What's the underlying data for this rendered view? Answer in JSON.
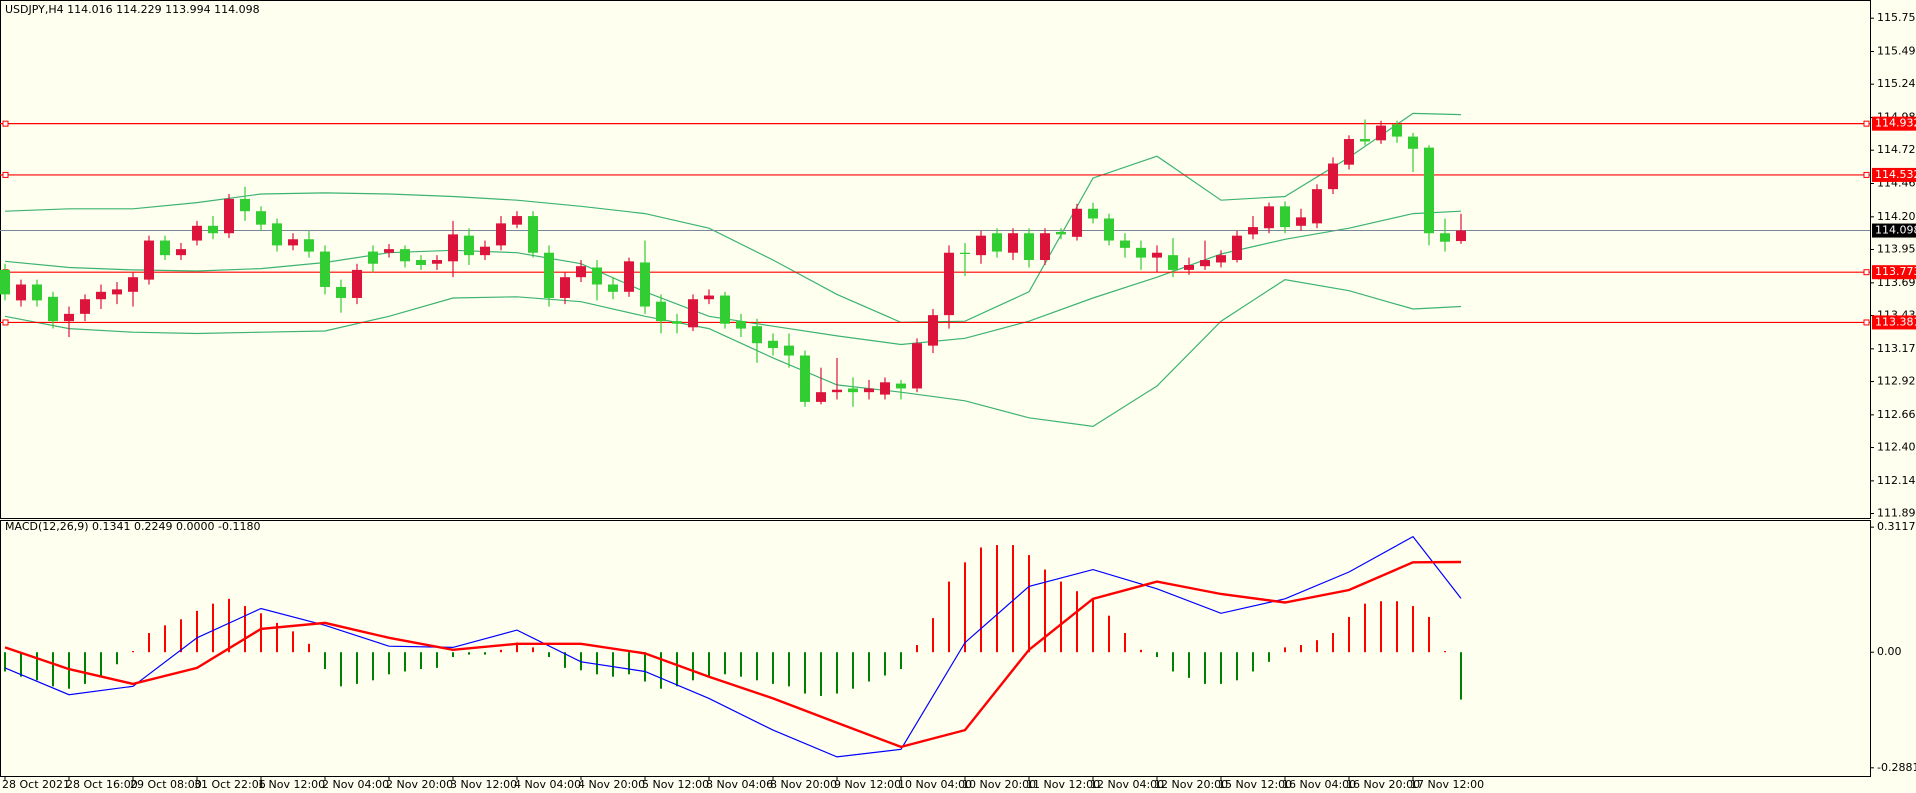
{
  "chart_data": [
    {
      "type": "candlestick",
      "title": "USDJPY,H4  114.016 114.229 113.994 114.098",
      "categories": [
        "28 Oct 2021",
        null,
        null,
        null,
        "28 Oct 16:00",
        null,
        null,
        null,
        "29 Oct 08:00",
        null,
        null,
        null,
        "31 Oct 22:06",
        null,
        null,
        null,
        "1 Nov 12:00",
        null,
        null,
        null,
        "2 Nov 04:00",
        null,
        null,
        null,
        "2 Nov 20:00",
        null,
        null,
        null,
        "3 Nov 12:00",
        null,
        null,
        null,
        "4 Nov 04:00",
        null,
        null,
        null,
        "4 Nov 20:00",
        null,
        null,
        null,
        "5 Nov 12:00",
        null,
        null,
        null,
        "8 Nov 04:06",
        null,
        null,
        null,
        "8 Nov 20:00",
        null,
        null,
        null,
        "9 Nov 12:00",
        null,
        null,
        null,
        "10 Nov 04:00",
        null,
        null,
        null,
        "10 Nov 20:00",
        null,
        null,
        null,
        "11 Nov 12:00",
        null,
        null,
        null,
        "12 Nov 04:00",
        null,
        null,
        null,
        "12 Nov 20:00",
        null,
        null,
        null,
        "15 Nov 12:00",
        null,
        null,
        null,
        "16 Nov 04:00",
        null,
        null,
        null,
        "16 Nov 20:00",
        null,
        null,
        null,
        "17 Nov 12:00",
        null,
        null,
        null
      ],
      "open": [
        113.791,
        113.553,
        113.677,
        113.581,
        113.391,
        113.448,
        113.562,
        113.6,
        113.62,
        113.715,
        114.02,
        113.906,
        114.02,
        114.135,
        114.077,
        114.345,
        114.249,
        114.154,
        113.982,
        114.03,
        113.934,
        113.658,
        113.572,
        113.934,
        113.925,
        113.953,
        113.868,
        113.839,
        113.858,
        114.058,
        113.906,
        113.982,
        114.144,
        114.211,
        113.925,
        113.572,
        113.734,
        113.81,
        113.677,
        113.62,
        113.849,
        113.543,
        113.391,
        113.343,
        113.562,
        113.591,
        113.391,
        113.352,
        113.238,
        113.2,
        113.123,
        112.761,
        112.837,
        112.866,
        112.837,
        112.818,
        112.904,
        112.866,
        113.2,
        113.438,
        113.925,
        113.906,
        114.077,
        113.925,
        114.077,
        113.868,
        114.087,
        114.049,
        114.268,
        114.192,
        114.02,
        113.963,
        113.887,
        113.906,
        113.791,
        113.82,
        113.849,
        113.868,
        114.068,
        114.116,
        114.287,
        114.135,
        114.154,
        114.421,
        114.612,
        114.812,
        114.802,
        114.926,
        114.831,
        114.745,
        114.077,
        114.016
      ],
      "high": [
        113.839,
        113.715,
        113.715,
        113.62,
        113.505,
        113.6,
        113.677,
        113.696,
        113.772,
        114.058,
        114.058,
        114.001,
        114.173,
        114.211,
        114.383,
        114.44,
        114.287,
        114.192,
        114.077,
        114.096,
        113.982,
        113.715,
        113.839,
        113.982,
        113.992,
        113.982,
        113.906,
        113.906,
        114.173,
        114.116,
        114.02,
        114.211,
        114.249,
        114.249,
        113.982,
        113.772,
        113.868,
        113.868,
        113.734,
        113.887,
        114.02,
        113.6,
        113.448,
        113.6,
        113.639,
        113.62,
        113.448,
        113.41,
        113.295,
        113.295,
        113.162,
        113.028,
        113.104,
        112.952,
        112.933,
        112.952,
        112.933,
        113.257,
        113.486,
        113.982,
        114.001,
        114.096,
        114.116,
        114.116,
        114.116,
        114.116,
        114.116,
        114.306,
        114.316,
        114.23,
        114.077,
        114.02,
        113.982,
        114.039,
        113.887,
        114.02,
        113.944,
        114.096,
        114.211,
        114.316,
        114.325,
        114.268,
        114.459,
        114.669,
        114.841,
        114.965,
        114.955,
        114.955,
        114.86,
        114.764,
        114.192,
        114.229
      ],
      "low": [
        113.553,
        113.505,
        113.505,
        113.333,
        113.267,
        113.391,
        113.486,
        113.524,
        113.505,
        113.677,
        113.868,
        113.868,
        113.982,
        114.03,
        114.039,
        114.173,
        114.096,
        113.934,
        113.944,
        113.887,
        113.6,
        113.457,
        113.524,
        113.772,
        113.887,
        113.81,
        113.791,
        113.791,
        113.734,
        113.829,
        113.868,
        113.944,
        114.116,
        113.887,
        113.505,
        113.524,
        113.696,
        113.553,
        113.562,
        113.581,
        113.448,
        113.295,
        113.295,
        113.314,
        113.524,
        113.333,
        113.267,
        113.066,
        113.123,
        113.028,
        112.723,
        112.742,
        112.78,
        112.723,
        112.78,
        112.78,
        112.78,
        112.837,
        113.142,
        113.333,
        113.744,
        113.839,
        113.887,
        113.868,
        113.81,
        113.829,
        114.03,
        114.02,
        114.154,
        113.982,
        113.887,
        113.791,
        113.772,
        113.734,
        113.753,
        113.791,
        113.81,
        113.849,
        114.03,
        114.077,
        114.077,
        114.096,
        114.116,
        114.383,
        114.574,
        114.764,
        114.774,
        114.783,
        114.554,
        113.982,
        113.934,
        113.994
      ],
      "close": [
        113.6,
        113.677,
        113.553,
        113.391,
        113.448,
        113.562,
        113.62,
        113.639,
        113.734,
        114.02,
        113.906,
        113.953,
        114.135,
        114.077,
        114.345,
        114.249,
        114.144,
        113.982,
        114.03,
        113.934,
        113.658,
        113.572,
        113.791,
        113.839,
        113.953,
        113.858,
        113.829,
        113.868,
        114.068,
        113.906,
        113.972,
        114.154,
        114.211,
        113.925,
        113.572,
        113.734,
        113.82,
        113.677,
        113.62,
        113.858,
        113.505,
        113.391,
        113.371,
        113.562,
        113.591,
        113.371,
        113.333,
        113.219,
        113.181,
        113.123,
        112.761,
        112.837,
        112.856,
        112.837,
        112.866,
        112.914,
        112.866,
        113.219,
        113.438,
        113.925,
        113.915,
        114.058,
        113.934,
        114.077,
        113.868,
        114.077,
        114.068,
        114.268,
        114.192,
        114.02,
        113.963,
        113.887,
        113.925,
        113.791,
        113.829,
        113.868,
        113.906,
        114.058,
        114.125,
        114.287,
        114.125,
        114.201,
        114.421,
        114.621,
        114.812,
        114.793,
        114.917,
        114.831,
        114.736,
        114.077,
        114.011,
        114.098
      ],
      "up_color": "#dc143c",
      "down_color": "#32cd32",
      "band_x": [
        0,
        4,
        8,
        12,
        16,
        20,
        24,
        28,
        32,
        36,
        40,
        44,
        48,
        52,
        56,
        60,
        64,
        68,
        72,
        76,
        80,
        84,
        88,
        91
      ],
      "bands": [
        {
          "color": "#3cb371",
          "values": [
            114.249,
            114.268,
            114.268,
            114.316,
            114.383,
            114.392,
            114.383,
            114.364,
            114.335,
            114.287,
            114.23,
            114.116,
            113.868,
            113.6,
            113.381,
            113.391,
            113.62,
            114.507,
            114.678,
            114.335,
            114.364,
            114.669,
            115.012,
            115.003
          ]
        },
        {
          "color": "#3cb371",
          "values": [
            113.858,
            113.81,
            113.791,
            113.782,
            113.801,
            113.849,
            113.925,
            113.944,
            113.925,
            113.839,
            113.62,
            113.429,
            113.352,
            113.276,
            113.209,
            113.257,
            113.391,
            113.572,
            113.734,
            113.915,
            114.03,
            114.116,
            114.23,
            114.249
          ]
        },
        {
          "color": "#3cb371",
          "values": [
            113.429,
            113.333,
            113.305,
            113.295,
            113.305,
            113.314,
            113.429,
            113.572,
            113.581,
            113.543,
            113.429,
            113.333,
            113.104,
            112.894,
            112.837,
            112.77,
            112.637,
            112.57,
            112.885,
            113.391,
            113.715,
            113.629,
            113.486,
            113.505
          ]
        }
      ],
      "levels": [
        {
          "value": 114.932,
          "color": "#ff0000"
        },
        {
          "value": 114.532,
          "color": "#ff0000"
        },
        {
          "value": 113.773,
          "color": "#ff0000"
        },
        {
          "value": 113.381,
          "color": "#ff0000"
        }
      ],
      "last_price_color": "#778899",
      "ylim": [
        111.863,
        115.889
      ],
      "yticks": [
        115.755,
        115.495,
        {
          "value": 115.24,
          "label": "115.240"
        },
        {
          "value": 114.98,
          "label": "114.980"
        },
        114.725,
        114.465,
        114.205,
        {
          "value": 113.95,
          "label": "113.950"
        },
        {
          "value": 113.69,
          "label": "113.690"
        },
        113.435,
        113.175,
        {
          "value": 112.92,
          "label": "112.920"
        },
        {
          "value": 112.66,
          "label": "112.660"
        },
        112.405,
        112.145,
        {
          "value": 111.89,
          "label": "111.890"
        }
      ]
    },
    {
      "type": "macd",
      "title": "MACD(12,26,9) 0.1341 0.2249 0.0000 -0.1180",
      "values": [
        -0.048,
        -0.061,
        -0.07,
        -0.085,
        -0.091,
        -0.079,
        -0.061,
        -0.03,
        0.003,
        0.048,
        0.067,
        0.082,
        0.103,
        0.121,
        0.133,
        0.115,
        0.097,
        0.073,
        0.052,
        0.021,
        -0.042,
        -0.085,
        -0.079,
        -0.07,
        -0.055,
        -0.048,
        -0.042,
        -0.039,
        -0.012,
        -0.006,
        -0.006,
        0.006,
        0.024,
        0.012,
        -0.012,
        -0.039,
        -0.045,
        -0.055,
        -0.061,
        -0.055,
        -0.073,
        -0.091,
        -0.085,
        -0.07,
        -0.061,
        -0.055,
        -0.061,
        -0.07,
        -0.079,
        -0.085,
        -0.103,
        -0.109,
        -0.103,
        -0.091,
        -0.073,
        -0.058,
        -0.042,
        0.018,
        0.085,
        0.176,
        0.224,
        0.261,
        0.267,
        0.267,
        0.242,
        0.206,
        0.176,
        0.152,
        0.133,
        0.091,
        0.048,
        0.006,
        -0.012,
        -0.048,
        -0.064,
        -0.079,
        -0.079,
        -0.07,
        -0.048,
        -0.024,
        0.012,
        0.018,
        0.03,
        0.048,
        0.088,
        0.121,
        0.127,
        0.127,
        0.115,
        0.088,
        0.003,
        -0.118
      ],
      "pos_color": "#ff0000",
      "neg_color": "#008000",
      "lines_x": [
        0,
        4,
        8,
        12,
        16,
        20,
        24,
        28,
        32,
        36,
        40,
        44,
        48,
        52,
        56,
        60,
        64,
        68,
        72,
        76,
        80,
        84,
        88,
        91
      ],
      "series": [
        {
          "color": "#0000ff",
          "values": [
            -0.039,
            -0.106,
            -0.085,
            0.036,
            0.109,
            0.067,
            0.015,
            0.012,
            0.055,
            -0.024,
            -0.048,
            -0.115,
            -0.194,
            -0.261,
            -0.242,
            0.024,
            0.164,
            0.206,
            0.158,
            0.097,
            0.133,
            0.2,
            0.288,
            0.1341
          ]
        },
        {
          "color": "#ff0000",
          "values": [
            0.012,
            -0.042,
            -0.079,
            -0.039,
            0.058,
            0.073,
            0.036,
            0.006,
            0.021,
            0.021,
            -0.003,
            -0.061,
            -0.115,
            -0.176,
            -0.236,
            -0.194,
            0.006,
            0.133,
            0.176,
            0.145,
            0.124,
            0.155,
            0.224,
            0.2249
          ]
        }
      ],
      "ylim": [
        -0.306,
        0.327
      ],
      "yticks": [
        0.3117,
        {
          "value": 0,
          "label": "0.00"
        },
        -0.2881
      ]
    }
  ]
}
